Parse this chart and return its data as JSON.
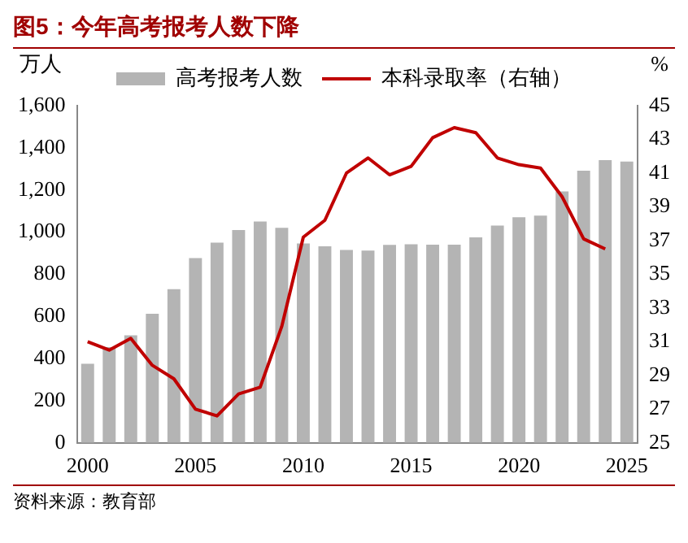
{
  "chart_data": {
    "type": "bar",
    "title": "图5：今年高考报考人数下降",
    "categories": [
      "2000",
      null,
      null,
      null,
      null,
      "2005",
      null,
      null,
      null,
      null,
      "2010",
      null,
      null,
      null,
      null,
      "2015",
      null,
      null,
      null,
      null,
      "2020",
      null,
      null,
      null,
      null,
      "2025"
    ],
    "series": [
      {
        "name": "高考报考人数",
        "color": "#b4b4b4",
        "values": [
          375,
          454,
          510,
          613,
          729,
          877,
          950,
          1010,
          1050,
          1020,
          946,
          933,
          915,
          912,
          939,
          942,
          940,
          940,
          975,
          1031,
          1071,
          1078,
          1193,
          1291,
          1342,
          1335
        ]
      },
      {
        "name": "本科录取率（右轴）",
        "type": "line",
        "axis": "y2",
        "color": "#c00000",
        "values": [
          31.0,
          30.5,
          31.2,
          29.6,
          28.8,
          27.0,
          26.6,
          27.9,
          28.3,
          31.9,
          37.2,
          38.2,
          41.0,
          41.9,
          40.9,
          41.4,
          43.1,
          43.7,
          43.4,
          41.9,
          41.5,
          41.3,
          39.6,
          37.1,
          36.5,
          null
        ]
      }
    ],
    "ylabel": "万人",
    "y2label": "%",
    "ylim": [
      0,
      1600
    ],
    "yticks": [
      {
        "value": 0,
        "label": "0"
      },
      {
        "value": 200,
        "label": "200"
      },
      {
        "value": 400,
        "label": "400"
      },
      {
        "value": 600,
        "label": "600"
      },
      {
        "value": 800,
        "label": "800"
      },
      {
        "value": 1000,
        "label": "1,000"
      },
      {
        "value": 1200,
        "label": "1,200"
      },
      {
        "value": 1400,
        "label": "1,400"
      },
      {
        "value": 1600,
        "label": "1,600"
      }
    ],
    "y2lim": [
      25,
      45
    ],
    "y2ticks": [
      25,
      27,
      29,
      31,
      33,
      35,
      37,
      39,
      41,
      43,
      45
    ],
    "legend": "top",
    "grid": false,
    "annotations": [
      "资料来源：教育部"
    ]
  }
}
